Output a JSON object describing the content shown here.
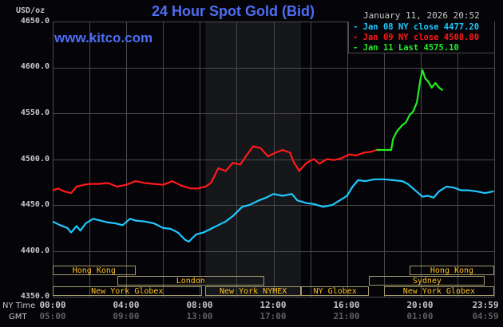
{
  "header": {
    "title": "24 Hour Spot Gold (Bid)",
    "unit_label": "USD/oz",
    "datetime": "January 11, 2026 20:52",
    "website": "www.kitco.com"
  },
  "legend": [
    {
      "label": "Jan 08 NY close 4477.20",
      "color": "#1ec8ff"
    },
    {
      "label": "Jan 09 NY close 4508.80",
      "color": "#ff1a1a"
    },
    {
      "label": "Jan 11 Last 4575.10",
      "color": "#22ee22"
    }
  ],
  "y_ticks": [
    "4650.0",
    "4600.0",
    "4550.0",
    "4500.0",
    "4450.0",
    "4400.0",
    "4350.0"
  ],
  "x_axis": {
    "ny_caption": "NY Time",
    "gmt_caption": "GMT",
    "ny_ticks": [
      "00:00",
      "04:00",
      "08:00",
      "12:00",
      "16:00",
      "20:00",
      "23:59"
    ],
    "gmt_ticks": [
      "05:00",
      "09:00",
      "13:00",
      "17:00",
      "21:00",
      "01:00",
      "04:59"
    ]
  },
  "sessions": [
    {
      "label": "Hong Kong",
      "row": 0,
      "start": 0,
      "end": 4.5
    },
    {
      "label": "London",
      "row": 1,
      "start": 3.5,
      "end": 11.5
    },
    {
      "label": "New York Globex",
      "row": 2,
      "start": 0,
      "end": 8.1
    },
    {
      "label": "New York NYMEX",
      "row": 2,
      "start": 8.3,
      "end": 13.5
    },
    {
      "label": "NY Globex",
      "row": 2,
      "start": 13.5,
      "end": 17.2
    },
    {
      "label": "Sydney",
      "row": 1,
      "start": 17.2,
      "end": 23.5
    },
    {
      "label": "Hong Kong",
      "row": 0,
      "start": 19.4,
      "end": 24
    },
    {
      "label": "New York Globex",
      "row": 2,
      "start": 18,
      "end": 24
    }
  ],
  "colors": {
    "background": "#050408",
    "grid": "#4a4a4a",
    "shaded_region": "#15171a",
    "title": "#4d6ef2",
    "session_text": "#ffc020",
    "session_border": "#a09a6a"
  },
  "chart_data": {
    "type": "line",
    "title": "24 Hour Spot Gold (Bid)",
    "xlabel": "NY Time",
    "ylabel": "USD/oz",
    "ylim": [
      4350,
      4650
    ],
    "xlim": [
      0,
      24
    ],
    "grid": true,
    "legend_position": "top-right",
    "shaded_region": {
      "start": 8.3,
      "end": 13.5
    },
    "x_tick_labels": [
      "00:00",
      "04:00",
      "08:00",
      "12:00",
      "16:00",
      "20:00",
      "23:59"
    ],
    "y_tick_labels": [
      "4350.0",
      "4400.0",
      "4450.0",
      "4500.0",
      "4550.0",
      "4600.0",
      "4650.0"
    ],
    "series": [
      {
        "name": "Jan 08 NY close 4477.20",
        "color": "#1ec8ff",
        "x": [
          0,
          0.4,
          0.8,
          1.0,
          1.3,
          1.5,
          1.8,
          2.2,
          2.6,
          3.0,
          3.4,
          3.8,
          4.2,
          4.5,
          5.0,
          5.5,
          6.0,
          6.4,
          6.8,
          7.2,
          7.4,
          7.8,
          8.2,
          8.6,
          9.0,
          9.4,
          9.8,
          10.3,
          10.7,
          11.2,
          11.6,
          12.0,
          12.5,
          13.0,
          13.3,
          13.8,
          14.2,
          14.7,
          15.2,
          15.6,
          16.0,
          16.3,
          16.6,
          17.0,
          17.5,
          18.0,
          18.5,
          19.0,
          19.3,
          19.7,
          20.1,
          20.4,
          20.7,
          21.0,
          21.4,
          21.8,
          22.2,
          22.6,
          23.0,
          23.5,
          23.98
        ],
        "values": [
          4432,
          4428,
          4425,
          4420,
          4427,
          4422,
          4430,
          4435,
          4433,
          4431,
          4430,
          4428,
          4435,
          4433,
          4432,
          4430,
          4425,
          4424,
          4420,
          4412,
          4410,
          4418,
          4420,
          4424,
          4428,
          4432,
          4438,
          4448,
          4450,
          4455,
          4458,
          4462,
          4460,
          4462,
          4455,
          4452,
          4451,
          4448,
          4450,
          4455,
          4460,
          4470,
          4477,
          4476,
          4478,
          4478,
          4477,
          4476,
          4473,
          4466,
          4459,
          4460,
          4458,
          4465,
          4470,
          4469,
          4466,
          4466,
          4465,
          4463,
          4465
        ]
      },
      {
        "name": "Jan 09 NY close 4508.80",
        "color": "#ff1a1a",
        "x": [
          0,
          0.3,
          0.6,
          1.0,
          1.3,
          1.7,
          2.0,
          2.5,
          3.0,
          3.5,
          4.0,
          4.5,
          5.0,
          5.5,
          6.0,
          6.5,
          7.0,
          7.5,
          7.9,
          8.3,
          8.6,
          9.0,
          9.4,
          9.8,
          10.2,
          10.5,
          10.9,
          11.3,
          11.7,
          12.1,
          12.5,
          12.9,
          13.1,
          13.4,
          13.8,
          14.2,
          14.5,
          14.9,
          15.3,
          15.7,
          16.1,
          16.5,
          16.9,
          17.3,
          17.6
        ],
        "values": [
          4466,
          4468,
          4465,
          4463,
          4470,
          4472,
          4473,
          4473,
          4474,
          4470,
          4472,
          4476,
          4474,
          4473,
          4472,
          4476,
          4471,
          4468,
          4468,
          4470,
          4474,
          4490,
          4487,
          4496,
          4494,
          4503,
          4514,
          4512,
          4503,
          4507,
          4510,
          4507,
          4497,
          4487,
          4496,
          4500,
          4495,
          4500,
          4499,
          4501,
          4505,
          4504,
          4507,
          4508,
          4510
        ]
      },
      {
        "name": "Jan 11 Last 4575.10",
        "color": "#22ee22",
        "x": [
          17.6,
          18.0,
          18.4,
          18.5,
          18.7,
          19.0,
          19.2,
          19.4,
          19.6,
          19.8,
          20.0,
          20.1,
          20.25,
          20.4,
          20.6,
          20.8,
          21.0,
          21.2
        ],
        "values": [
          4510,
          4510,
          4510,
          4522,
          4530,
          4537,
          4540,
          4548,
          4552,
          4562,
          4588,
          4597,
          4588,
          4585,
          4578,
          4583,
          4578,
          4575
        ]
      }
    ]
  }
}
